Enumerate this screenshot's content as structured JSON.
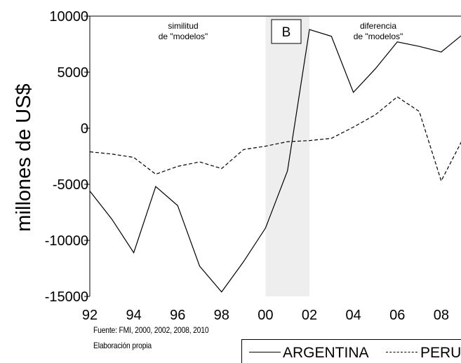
{
  "chart_data": {
    "type": "line",
    "ylabel": "millones de US$",
    "xlabel": "",
    "ylim": [
      -15000,
      10000
    ],
    "xlim": [
      1992,
      2008.9
    ],
    "x_ticks": [
      1992,
      1994,
      1996,
      1998,
      2000,
      2002,
      2004,
      2006,
      2008
    ],
    "x_tick_labels": [
      "92",
      "94",
      "96",
      "98",
      "00",
      "02",
      "04",
      "06",
      "08"
    ],
    "y_ticks": [
      -15000,
      -10000,
      -5000,
      0,
      5000,
      10000
    ],
    "y_tick_labels": [
      "-15000",
      "-10000",
      "-5000",
      "0",
      "5000",
      "10000"
    ],
    "grid": false,
    "legend_position": "bottom-right",
    "shaded_region": {
      "x_start": 2000,
      "x_end": 2002,
      "color": "#eeeeee"
    },
    "panel_label": "B",
    "annotations": [
      {
        "id": "similitud",
        "lines": [
          "similitud",
          "de \"modelos\""
        ]
      },
      {
        "id": "diferencia",
        "lines": [
          "diferencia",
          "de \"modelos\""
        ]
      }
    ],
    "x": [
      1992,
      1993,
      1994,
      1995,
      1996,
      1997,
      1998,
      1999,
      2000,
      2001,
      2002,
      2003,
      2004,
      2005,
      2006,
      2007,
      2008,
      2009
    ],
    "series": [
      {
        "name": "ARGENTINA",
        "style": "solid",
        "color": "#000000",
        "values": [
          -5600,
          -8100,
          -11100,
          -5200,
          -6900,
          -12300,
          -14600,
          -11900,
          -8900,
          -3800,
          8800,
          8200,
          3200,
          5300,
          7700,
          7300,
          6800,
          8400
        ]
      },
      {
        "name": "PERU",
        "style": "dashed",
        "color": "#000000",
        "values": [
          -2100,
          -2300,
          -2600,
          -4100,
          -3400,
          -3000,
          -3600,
          -1900,
          -1600,
          -1200,
          -1100,
          -900,
          100,
          1200,
          2800,
          1500,
          -4700,
          -900
        ]
      }
    ]
  },
  "notes": {
    "source": "Fuente: FMI, 2000, 2002, 2008, 2010",
    "author": "Elaboración propia"
  },
  "colors": {
    "axis": "#000000",
    "shade": "#eeeeee",
    "background": "#ffffff"
  }
}
